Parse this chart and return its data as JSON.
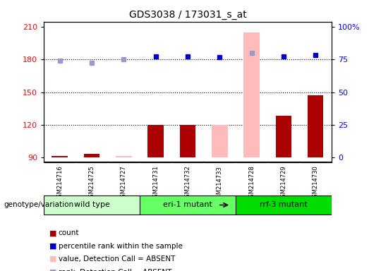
{
  "title": "GDS3038 / 173031_s_at",
  "samples": [
    "GSM214716",
    "GSM214725",
    "GSM214727",
    "GSM214731",
    "GSM214732",
    "GSM214733",
    "GSM214728",
    "GSM214729",
    "GSM214730"
  ],
  "groups": [
    {
      "label": "wild type",
      "samples": [
        0,
        1,
        2
      ],
      "color": "#ccffcc"
    },
    {
      "label": "eri-1 mutant",
      "samples": [
        3,
        4,
        5
      ],
      "color": "#66ff66"
    },
    {
      "label": "rrf-3 mutant",
      "samples": [
        6,
        7,
        8
      ],
      "color": "#00dd00"
    }
  ],
  "count_values": [
    91,
    93,
    91,
    120,
    120,
    120,
    205,
    128,
    147
  ],
  "count_absent": [
    false,
    false,
    true,
    false,
    false,
    true,
    true,
    false,
    false
  ],
  "rank_values": [
    179,
    177,
    180,
    183,
    183,
    182,
    186,
    183,
    184
  ],
  "rank_absent": [
    true,
    true,
    true,
    false,
    false,
    false,
    true,
    false,
    false
  ],
  "ylim_left": [
    85,
    215
  ],
  "ylim_right": [
    0,
    100
  ],
  "yticks_left": [
    90,
    120,
    150,
    180,
    210
  ],
  "yticks_right": [
    0,
    25,
    50,
    75,
    100
  ],
  "color_count_present": "#aa0000",
  "color_count_absent": "#ffbbbb",
  "color_rank_present": "#0000cc",
  "color_rank_absent": "#9999cc",
  "bg_plot": "#ffffff",
  "bg_sample": "#cccccc",
  "bg_figure": "#ffffff"
}
